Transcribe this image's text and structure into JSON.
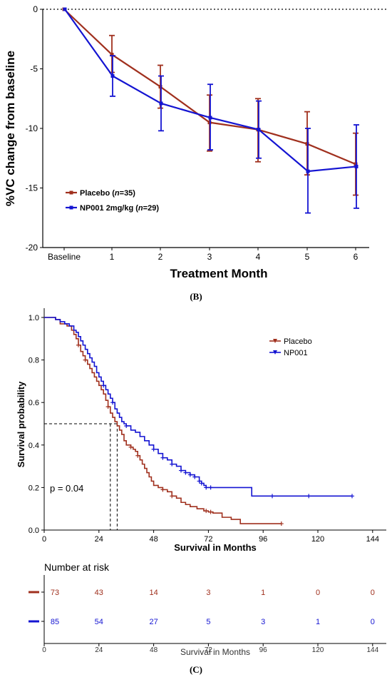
{
  "chart_data": [
    {
      "type": "line",
      "title": "",
      "xlabel": "Treatment Month",
      "ylabel": "%VC change from baseline",
      "categories": [
        "Baseline",
        "1",
        "2",
        "3",
        "4",
        "5",
        "6"
      ],
      "ylim": [
        -20,
        0
      ],
      "yticks": [
        0,
        -5,
        -10,
        -15,
        -20
      ],
      "legend_position": "bottom-left",
      "reference_line": {
        "y": 0,
        "style": "dotted"
      },
      "series": [
        {
          "name": "Placebo (n=35)",
          "name_parts": [
            "Placebo (",
            "n",
            "=35)"
          ],
          "color": "#a0301e",
          "values": [
            0,
            -3.8,
            -6.5,
            -9.5,
            -10.1,
            -11.3,
            -13.0
          ],
          "err_low": [
            null,
            -5.3,
            -8.3,
            -11.9,
            -12.8,
            -13.9,
            -15.6
          ],
          "err_high": [
            null,
            -2.2,
            -4.7,
            -7.2,
            -7.5,
            -8.6,
            -10.4
          ]
        },
        {
          "name": "NP001 2mg/kg (n=29)",
          "name_parts": [
            "NP001 2mg/kg (",
            "n",
            "=29)"
          ],
          "color": "#1414d2",
          "values": [
            0,
            -5.6,
            -7.9,
            -9.1,
            -10.1,
            -13.6,
            -13.2
          ],
          "err_low": [
            null,
            -7.3,
            -10.2,
            -11.8,
            -12.5,
            -17.1,
            -16.7
          ],
          "err_high": [
            null,
            -3.9,
            -5.6,
            -6.3,
            -7.7,
            -10.0,
            -9.7
          ]
        }
      ]
    },
    {
      "type": "line",
      "subtype": "kaplan-meier",
      "title": "",
      "xlabel": "Survival in Months",
      "ylabel": "Survival probability",
      "xlim": [
        0,
        150
      ],
      "xticks": [
        0,
        24,
        48,
        72,
        96,
        120,
        144
      ],
      "ylim": [
        0,
        1
      ],
      "yticks": [
        "0.0",
        "0.2",
        "0.4",
        "0.6",
        "0.8",
        "1.0"
      ],
      "legend_position": "top-right",
      "median_lines": {
        "y": 0.5,
        "x": [
          29,
          32
        ]
      },
      "annotation": "p = 0.04",
      "series": [
        {
          "name": "Placebo",
          "color": "#a0301e",
          "steps": [
            [
              0,
              1.0
            ],
            [
              5,
              0.99
            ],
            [
              7,
              0.97
            ],
            [
              10,
              0.96
            ],
            [
              12,
              0.94
            ],
            [
              13,
              0.92
            ],
            [
              14,
              0.9
            ],
            [
              15,
              0.87
            ],
            [
              16,
              0.84
            ],
            [
              17,
              0.82
            ],
            [
              18,
              0.8
            ],
            [
              19,
              0.78
            ],
            [
              20,
              0.76
            ],
            [
              21,
              0.74
            ],
            [
              22,
              0.72
            ],
            [
              23,
              0.7
            ],
            [
              24,
              0.68
            ],
            [
              25,
              0.66
            ],
            [
              26,
              0.64
            ],
            [
              27,
              0.61
            ],
            [
              28,
              0.58
            ],
            [
              29,
              0.55
            ],
            [
              30,
              0.53
            ],
            [
              31,
              0.51
            ],
            [
              32,
              0.49
            ],
            [
              33,
              0.47
            ],
            [
              34,
              0.45
            ],
            [
              35,
              0.42
            ],
            [
              36,
              0.4
            ],
            [
              38,
              0.39
            ],
            [
              39,
              0.38
            ],
            [
              40,
              0.37
            ],
            [
              41,
              0.35
            ],
            [
              42,
              0.33
            ],
            [
              43,
              0.31
            ],
            [
              44,
              0.29
            ],
            [
              45,
              0.27
            ],
            [
              46,
              0.25
            ],
            [
              47,
              0.23
            ],
            [
              48,
              0.21
            ],
            [
              50,
              0.2
            ],
            [
              52,
              0.19
            ],
            [
              54,
              0.18
            ],
            [
              56,
              0.16
            ],
            [
              58,
              0.15
            ],
            [
              60,
              0.13
            ],
            [
              62,
              0.12
            ],
            [
              64,
              0.11
            ],
            [
              67,
              0.1
            ],
            [
              70,
              0.09
            ],
            [
              72,
              0.085
            ],
            [
              74,
              0.08
            ],
            [
              78,
              0.06
            ],
            [
              82,
              0.05
            ],
            [
              86,
              0.03
            ],
            [
              104,
              0.03
            ]
          ],
          "censor_times": [
            15,
            18,
            28,
            38,
            41,
            52,
            56,
            71,
            73,
            104
          ]
        },
        {
          "name": "NP001",
          "color": "#1414d2",
          "steps": [
            [
              0,
              1.0
            ],
            [
              5,
              0.99
            ],
            [
              7,
              0.98
            ],
            [
              9,
              0.97
            ],
            [
              11,
              0.96
            ],
            [
              13,
              0.94
            ],
            [
              14,
              0.93
            ],
            [
              15,
              0.91
            ],
            [
              16,
              0.89
            ],
            [
              17,
              0.87
            ],
            [
              18,
              0.85
            ],
            [
              19,
              0.83
            ],
            [
              20,
              0.81
            ],
            [
              21,
              0.79
            ],
            [
              22,
              0.77
            ],
            [
              23,
              0.74
            ],
            [
              24,
              0.72
            ],
            [
              25,
              0.7
            ],
            [
              26,
              0.68
            ],
            [
              27,
              0.66
            ],
            [
              28,
              0.64
            ],
            [
              29,
              0.62
            ],
            [
              30,
              0.6
            ],
            [
              31,
              0.57
            ],
            [
              32,
              0.55
            ],
            [
              33,
              0.53
            ],
            [
              34,
              0.51
            ],
            [
              35,
              0.5
            ],
            [
              36,
              0.49
            ],
            [
              38,
              0.47
            ],
            [
              40,
              0.46
            ],
            [
              42,
              0.44
            ],
            [
              44,
              0.42
            ],
            [
              46,
              0.4
            ],
            [
              48,
              0.38
            ],
            [
              50,
              0.36
            ],
            [
              52,
              0.34
            ],
            [
              54,
              0.33
            ],
            [
              56,
              0.31
            ],
            [
              58,
              0.3
            ],
            [
              60,
              0.28
            ],
            [
              62,
              0.27
            ],
            [
              64,
              0.26
            ],
            [
              66,
              0.25
            ],
            [
              68,
              0.23
            ],
            [
              69,
              0.22
            ],
            [
              70,
              0.21
            ],
            [
              71,
              0.2
            ],
            [
              90,
              0.2
            ],
            [
              91,
              0.16
            ],
            [
              135,
              0.16
            ]
          ],
          "censor_times": [
            26,
            30,
            36,
            48,
            52,
            56,
            60,
            62,
            64,
            66,
            68,
            69,
            71,
            73,
            100,
            116,
            135
          ]
        }
      ]
    },
    {
      "type": "table",
      "title": "Number at risk",
      "xlabel": "Survival in Months",
      "xlim": [
        0,
        150
      ],
      "xticks": [
        0,
        24,
        48,
        72,
        96,
        120,
        144
      ],
      "rows": [
        {
          "color": "#a0301e",
          "values": [
            73,
            43,
            14,
            3,
            1,
            0,
            0
          ]
        },
        {
          "color": "#1414d2",
          "values": [
            85,
            54,
            27,
            5,
            3,
            1,
            0
          ]
        }
      ]
    }
  ],
  "panel_labels": {
    "b": "(B)",
    "c": "(C)"
  }
}
